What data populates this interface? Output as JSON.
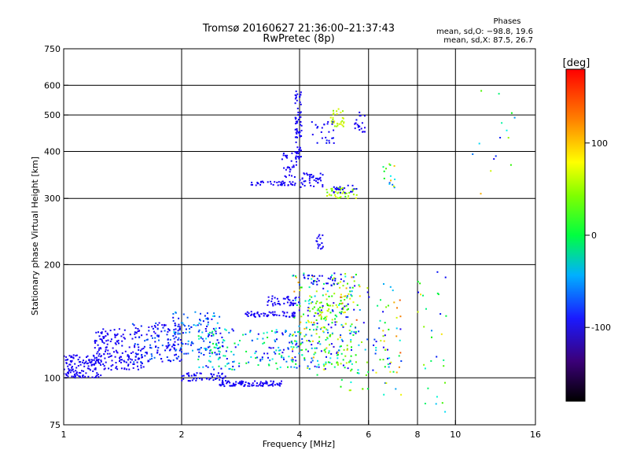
{
  "chart_data": {
    "type": "scatter",
    "title": "Tromsø 20160627 21:36:00–21:37:43",
    "subtitle": "RwPretec (8p)",
    "xlabel": "Frequency [MHz]",
    "ylabel": "Stationary phase Virtual Height [km]",
    "x_scale": "log",
    "y_scale": "log",
    "xlim": [
      1,
      16
    ],
    "ylim": [
      75,
      750
    ],
    "x_ticks": [
      {
        "value": 1,
        "label": "1"
      },
      {
        "value": 2,
        "label": "2"
      },
      {
        "value": 4,
        "label": "4"
      },
      {
        "value": 6,
        "label": "6"
      },
      {
        "value": 8,
        "label": "8"
      },
      {
        "value": 10,
        "label": "10"
      },
      {
        "value": 16,
        "label": "16"
      }
    ],
    "y_ticks": [
      {
        "value": 75,
        "label": "75"
      },
      {
        "value": 100,
        "label": "100"
      },
      {
        "value": 200,
        "label": "200"
      },
      {
        "value": 300,
        "label": "300"
      },
      {
        "value": 400,
        "label": "400"
      },
      {
        "value": 500,
        "label": "500"
      },
      {
        "value": 600,
        "label": "600"
      },
      {
        "value": 750,
        "label": "750"
      }
    ],
    "x_grid": [
      2,
      4,
      6,
      8,
      10
    ],
    "y_grid": [
      100,
      200,
      300,
      400,
      500,
      600
    ],
    "legend": {
      "title": "Phases",
      "lines": [
        "mean, sd,O: −98.8, 19.6",
        "mean, sd,X:  87.5, 26.7"
      ]
    },
    "colorbar": {
      "label": "[deg]",
      "range": [
        -180,
        180
      ],
      "ticks": [
        {
          "value": 100,
          "label": "100"
        },
        {
          "value": 0,
          "label": "0"
        },
        {
          "value": -100,
          "label": "-100"
        }
      ]
    },
    "clusters": [
      {
        "x": [
          1.0,
          1.25
        ],
        "y": [
          100,
          115
        ],
        "phase": [
          -115,
          -95
        ],
        "n": 130
      },
      {
        "x": [
          1.2,
          1.6
        ],
        "y": [
          105,
          135
        ],
        "phase": [
          -120,
          -90
        ],
        "n": 160
      },
      {
        "x": [
          1.5,
          2.0
        ],
        "y": [
          110,
          140
        ],
        "phase": [
          -125,
          -60
        ],
        "n": 140
      },
      {
        "x": [
          1.9,
          2.5
        ],
        "y": [
          115,
          150
        ],
        "phase": [
          -110,
          -20
        ],
        "n": 110
      },
      {
        "x": [
          2.0,
          2.6
        ],
        "y": [
          98,
          103
        ],
        "phase": [
          -115,
          -90
        ],
        "n": 50
      },
      {
        "x": [
          2.5,
          3.6
        ],
        "y": [
          95,
          98
        ],
        "phase": [
          -120,
          -90
        ],
        "n": 90
      },
      {
        "x": [
          2.2,
          4.0
        ],
        "y": [
          105,
          135
        ],
        "phase": [
          -120,
          40
        ],
        "n": 170
      },
      {
        "x": [
          2.9,
          3.9
        ],
        "y": [
          145,
          150
        ],
        "phase": [
          -115,
          -95
        ],
        "n": 60
      },
      {
        "x": [
          3.3,
          4.0
        ],
        "y": [
          155,
          165
        ],
        "phase": [
          -115,
          -95
        ],
        "n": 40
      },
      {
        "x": [
          3.8,
          5.6
        ],
        "y": [
          105,
          190
        ],
        "phase": [
          -130,
          150
        ],
        "n": 260
      },
      {
        "x": [
          4.0,
          5.1
        ],
        "y": [
          175,
          190
        ],
        "phase": [
          -115,
          -80
        ],
        "n": 30
      },
      {
        "x": [
          4.0,
          5.2
        ],
        "y": [
          140,
          165
        ],
        "phase": [
          40,
          110
        ],
        "n": 40
      },
      {
        "x": [
          4.4,
          5.5
        ],
        "y": [
          100,
          180
        ],
        "phase": [
          20,
          100
        ],
        "n": 30
      },
      {
        "x": [
          5.0,
          7.3
        ],
        "y": [
          90,
          180
        ],
        "phase": [
          -120,
          160
        ],
        "n": 110
      },
      {
        "x": [
          4.0,
          4.6
        ],
        "y": [
          320,
          350
        ],
        "phase": [
          -115,
          -90
        ],
        "n": 40
      },
      {
        "x": [
          4.6,
          5.6
        ],
        "y": [
          300,
          320
        ],
        "phase": [
          60,
          110
        ],
        "n": 40
      },
      {
        "x": [
          4.8,
          5.6
        ],
        "y": [
          310,
          325
        ],
        "phase": [
          -110,
          -90
        ],
        "n": 20
      },
      {
        "x": [
          3.0,
          3.9
        ],
        "y": [
          325,
          333
        ],
        "phase": [
          -115,
          -95
        ],
        "n": 40
      },
      {
        "x": [
          3.6,
          4.0
        ],
        "y": [
          340,
          400
        ],
        "phase": [
          -115,
          -95
        ],
        "n": 30
      },
      {
        "x": [
          3.9,
          4.05
        ],
        "y": [
          380,
          580
        ],
        "phase": [
          -115,
          -90
        ],
        "n": 70
      },
      {
        "x": [
          4.8,
          5.2
        ],
        "y": [
          460,
          520
        ],
        "phase": [
          80,
          110
        ],
        "n": 30
      },
      {
        "x": [
          5.5,
          5.9
        ],
        "y": [
          450,
          510
        ],
        "phase": [
          -120,
          -95
        ],
        "n": 20
      },
      {
        "x": [
          4.3,
          4.9
        ],
        "y": [
          420,
          480
        ],
        "phase": [
          -115,
          -80
        ],
        "n": 25
      },
      {
        "x": [
          4.4,
          4.6
        ],
        "y": [
          220,
          240
        ],
        "phase": [
          -110,
          -95
        ],
        "n": 15
      },
      {
        "x": [
          6.5,
          7.0
        ],
        "y": [
          320,
          380
        ],
        "phase": [
          -120,
          140
        ],
        "n": 15
      },
      {
        "x": [
          8.0,
          9.5
        ],
        "y": [
          80,
          200
        ],
        "phase": [
          -100,
          120
        ],
        "n": 30
      },
      {
        "x": [
          11.0,
          14.5
        ],
        "y": [
          300,
          600
        ],
        "phase": [
          -120,
          160
        ],
        "n": 15
      }
    ]
  }
}
